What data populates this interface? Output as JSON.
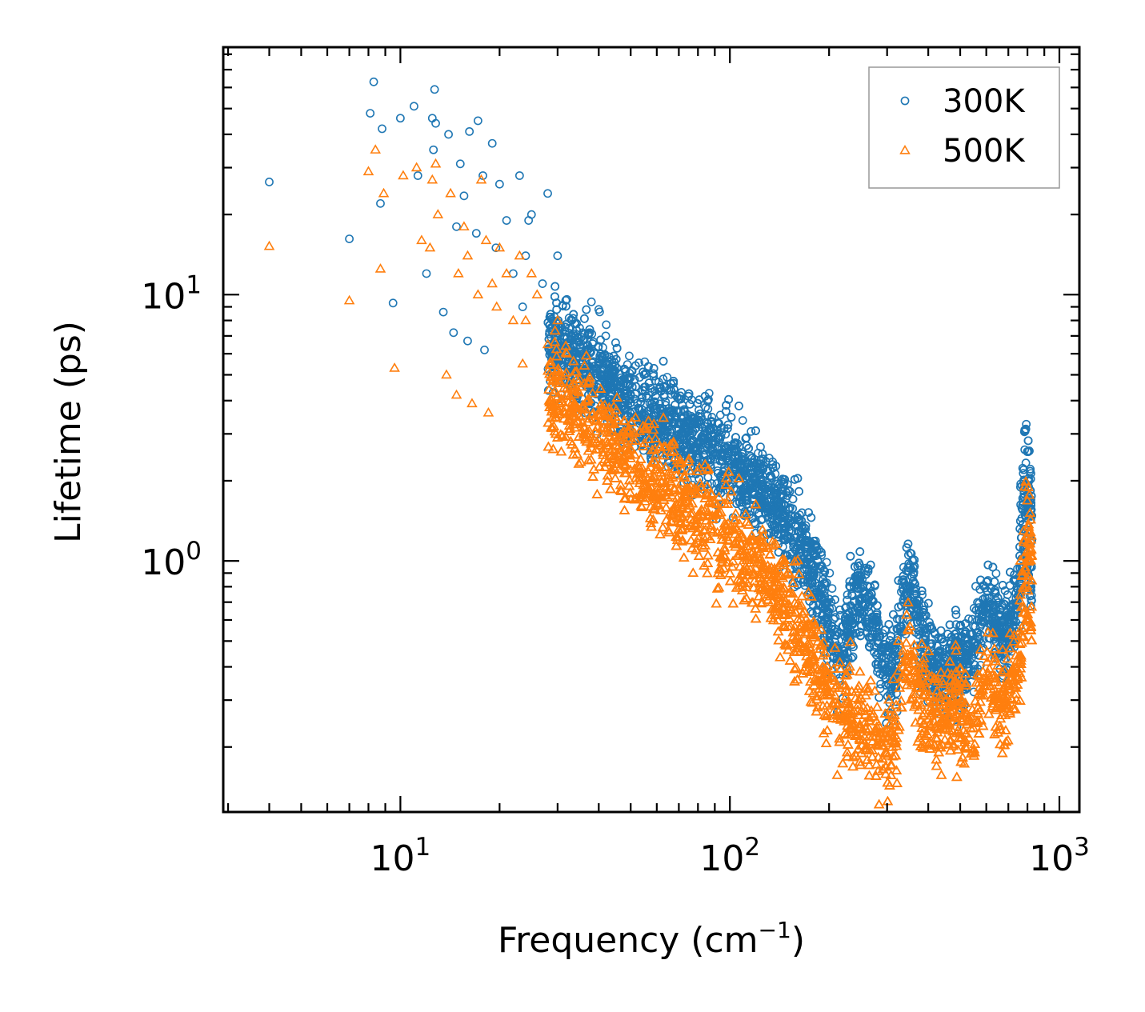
{
  "chart_data": {
    "type": "scatter",
    "title": "",
    "xlabel": "Frequency (cm",
    "xlabel_sup": "−1",
    "xlabel_end": ")",
    "ylabel": "Lifetime (ps)",
    "xscale": "log",
    "yscale": "log",
    "xlim": [
      2.9,
      1150
    ],
    "ylim": [
      0.114,
      85
    ],
    "x_ticks": [
      {
        "value": 10,
        "base": "10",
        "exp": "1"
      },
      {
        "value": 100,
        "base": "10",
        "exp": "2"
      },
      {
        "value": 1000,
        "base": "10",
        "exp": "3"
      }
    ],
    "y_ticks": [
      {
        "value": 1,
        "base": "10",
        "exp": "0"
      },
      {
        "value": 10,
        "base": "10",
        "exp": "1"
      }
    ],
    "legend_position": "top-right",
    "series": [
      {
        "name": "300K",
        "marker": "circle",
        "color": "#1f77b4",
        "points": [
          [
            4.0,
            26.5
          ],
          [
            7.0,
            16.2
          ],
          [
            8.1,
            48
          ],
          [
            8.3,
            63
          ],
          [
            8.7,
            22
          ],
          [
            8.8,
            42
          ],
          [
            9.5,
            9.3
          ],
          [
            10.0,
            46
          ],
          [
            11.0,
            51
          ],
          [
            11.3,
            28
          ],
          [
            12.0,
            12
          ],
          [
            12.5,
            46
          ],
          [
            12.6,
            35
          ],
          [
            12.7,
            59
          ],
          [
            12.8,
            44
          ],
          [
            13.5,
            8.6
          ],
          [
            14.0,
            40
          ],
          [
            14.5,
            7.2
          ],
          [
            14.8,
            18
          ],
          [
            15.2,
            31
          ],
          [
            15.6,
            23.5
          ],
          [
            16.0,
            6.7
          ],
          [
            16.2,
            41
          ],
          [
            17.0,
            17
          ],
          [
            17.2,
            45
          ],
          [
            17.8,
            28
          ],
          [
            18.0,
            6.2
          ],
          [
            19.0,
            37
          ],
          [
            19.5,
            15
          ],
          [
            20.0,
            26
          ],
          [
            21.0,
            19
          ],
          [
            22.0,
            12
          ],
          [
            23.0,
            28
          ],
          [
            23.5,
            9.0
          ],
          [
            24.0,
            14
          ],
          [
            24.5,
            19
          ],
          [
            25.0,
            20
          ],
          [
            27.0,
            11
          ],
          [
            28.0,
            24
          ],
          [
            29.0,
            8.0
          ],
          [
            30.0,
            14
          ],
          [
            32.0,
            9.6
          ],
          [
            35.0,
            7.5
          ],
          [
            38.0,
            9.4
          ],
          [
            40.0,
            8.8
          ],
          [
            42.0,
            7.0
          ],
          [
            45.0,
            6.6
          ]
        ]
      },
      {
        "name": "500K",
        "marker": "triangle",
        "color": "#ff7f0e",
        "points": [
          [
            4.0,
            15.2
          ],
          [
            7.0,
            9.5
          ],
          [
            8.0,
            29
          ],
          [
            8.4,
            35
          ],
          [
            8.7,
            12.5
          ],
          [
            8.9,
            24
          ],
          [
            9.6,
            5.3
          ],
          [
            10.2,
            28
          ],
          [
            11.2,
            30
          ],
          [
            11.6,
            16
          ],
          [
            12.3,
            15
          ],
          [
            12.5,
            27
          ],
          [
            12.8,
            31
          ],
          [
            13.0,
            20
          ],
          [
            13.8,
            5.0
          ],
          [
            14.2,
            24
          ],
          [
            14.8,
            4.2
          ],
          [
            15.0,
            12
          ],
          [
            15.6,
            18
          ],
          [
            16.0,
            14
          ],
          [
            16.5,
            3.9
          ],
          [
            17.2,
            10
          ],
          [
            17.6,
            27
          ],
          [
            18.2,
            16
          ],
          [
            18.5,
            3.6
          ],
          [
            19.0,
            11
          ],
          [
            19.6,
            9
          ],
          [
            20.0,
            15
          ],
          [
            21.0,
            12
          ],
          [
            22.0,
            8
          ],
          [
            23.0,
            14
          ],
          [
            23.5,
            5.5
          ],
          [
            24.0,
            8
          ],
          [
            25.0,
            12
          ],
          [
            26.0,
            10
          ],
          [
            28.0,
            6.5
          ],
          [
            30.0,
            8
          ],
          [
            32.0,
            6
          ],
          [
            35.0,
            4.8
          ]
        ]
      }
    ]
  }
}
